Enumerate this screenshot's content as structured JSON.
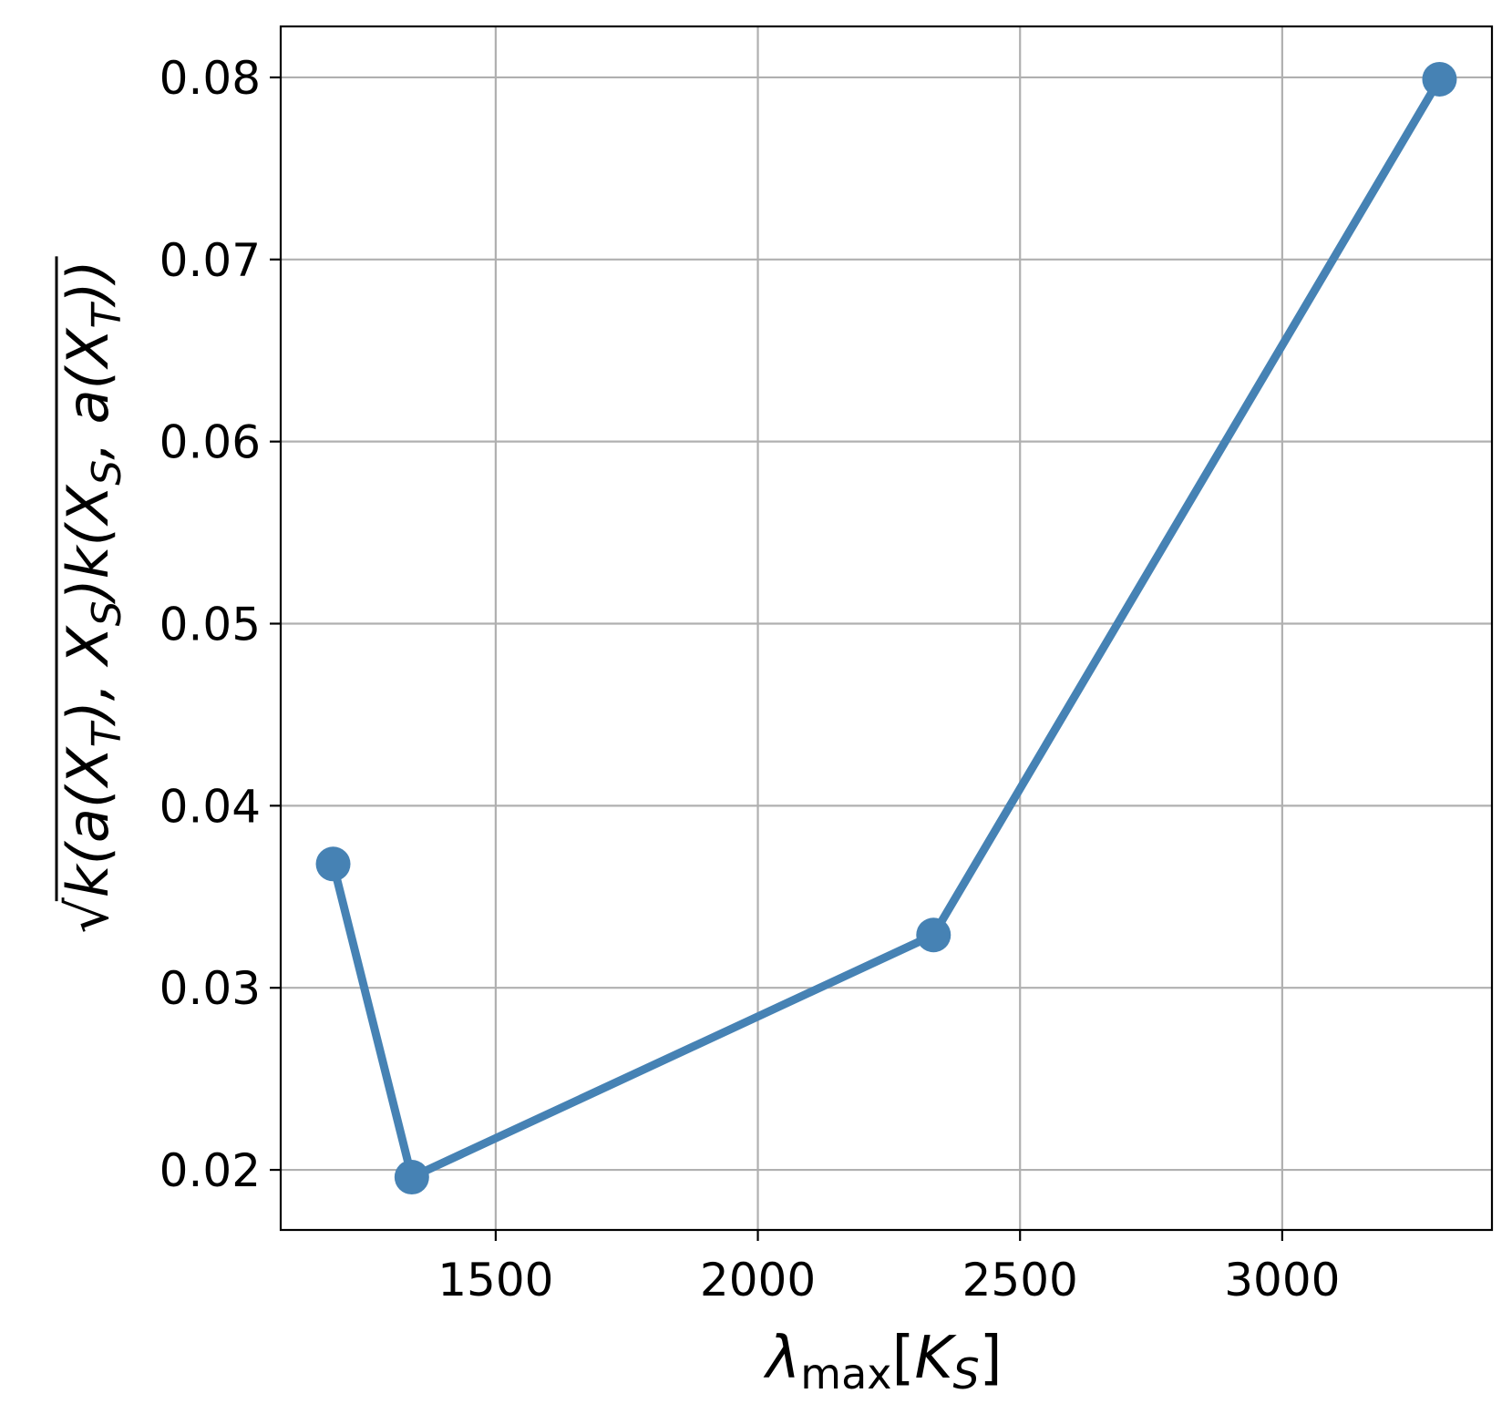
{
  "chart_data": {
    "type": "line",
    "title": "",
    "xlabel": {
      "symbol": "λ",
      "subscript": "max",
      "open": "[",
      "main": "K",
      "sub": "S",
      "close": "]"
    },
    "ylabel": {
      "radical": "√",
      "expr": [
        {
          "t": "k(a(X"
        },
        {
          "s": "T"
        },
        {
          "t": "), X"
        },
        {
          "s": "S"
        },
        {
          "t": ")k(X"
        },
        {
          "s": "S"
        },
        {
          "t": ", a(X"
        },
        {
          "s": "T"
        },
        {
          "t": "))"
        }
      ]
    },
    "x": [
      1190,
      1340,
      2335,
      3300
    ],
    "y": [
      0.0368,
      0.0196,
      0.0329,
      0.0799
    ],
    "xlim": [
      1090,
      3400
    ],
    "ylim": [
      0.0167,
      0.0828
    ],
    "xticks": [
      1500,
      2000,
      2500,
      3000
    ],
    "xtick_labels": [
      "1500",
      "2000",
      "2500",
      "3000"
    ],
    "yticks": [
      0.02,
      0.03,
      0.04,
      0.05,
      0.06,
      0.07,
      0.08
    ],
    "ytick_labels": [
      "0.02",
      "0.03",
      "0.04",
      "0.05",
      "0.06",
      "0.07",
      "0.08"
    ],
    "grid": true,
    "legend": "none",
    "colors": {
      "series": "#4682b4",
      "grid": "#b0b0b0",
      "axes": "#000000"
    }
  }
}
